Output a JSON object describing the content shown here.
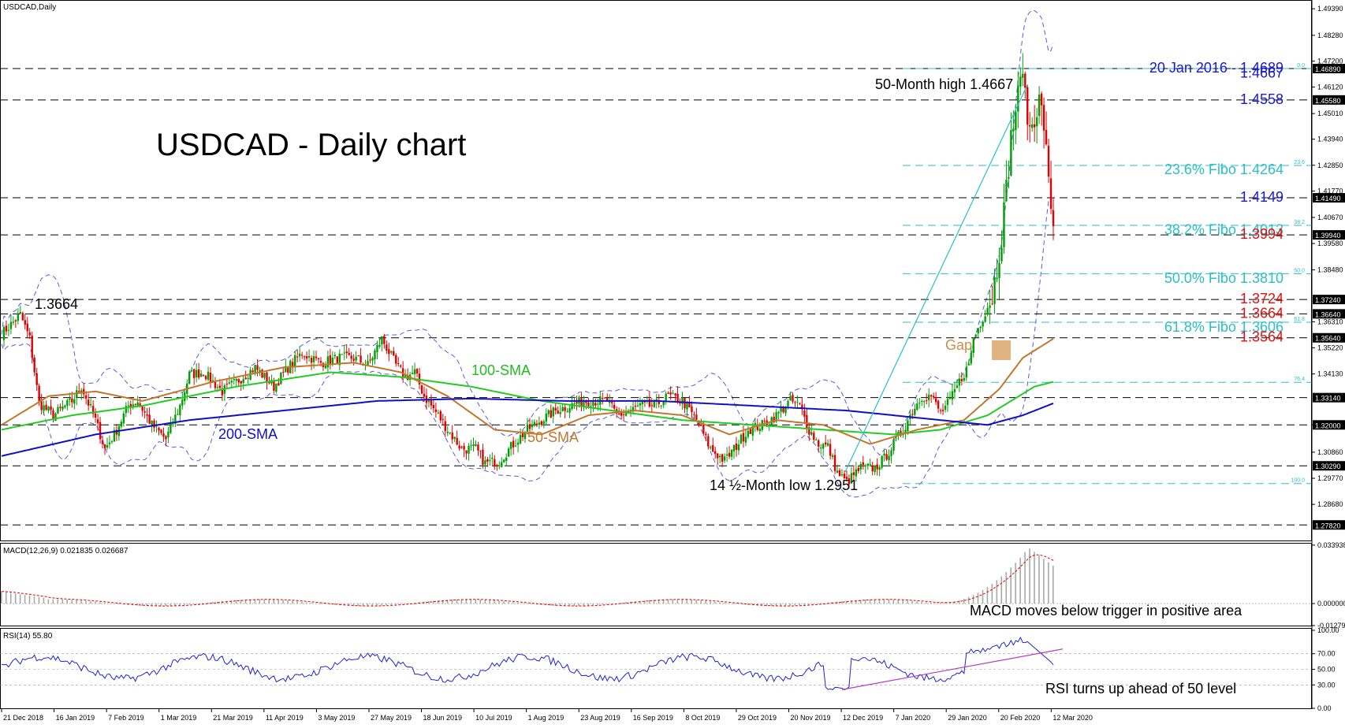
{
  "colors": {
    "candle_up": "#00a000",
    "candle_down": "#e00000",
    "sma50": "#c07830",
    "sma100": "#22cc22",
    "sma200": "#1010c0",
    "bollinger": "#5a5ae0",
    "fibo": "#2bbfc8",
    "trendline": "#2bbfc8",
    "macd_hist": "#a8a8a8",
    "macd_signal": "#e00000",
    "rsi": "#2222cc",
    "rsi_trend": "#b040c0",
    "level_blue": "#1a1acc",
    "level_red": "#e01010",
    "gap_box": "#d9a76a"
  },
  "panels": {
    "main": {
      "header": "USDCAD,Daily"
    },
    "macd": {
      "header": "MACD(12,26,9) 0.021835 0.026687"
    },
    "rsi": {
      "header": "RSI(14) 55.80"
    }
  },
  "annotations": {
    "title": "USDCAD - Daily chart",
    "high_label": "50-Month high 1.4667",
    "low_label": "14 ½-Month low 1.2951",
    "left_level": "1.3664",
    "gap": "Gap",
    "sma100": "100-SMA",
    "sma50": "50-SMA",
    "sma200": "200-SMA",
    "macd_note": "MACD moves below trigger in positive area",
    "rsi_note": "RSI turns up ahead of 50 level"
  },
  "level_labels": [
    {
      "text": "20 Jan 2016 - 1.4689",
      "price": 1.4689,
      "color": "blue"
    },
    {
      "text": "1.4667",
      "price": 1.4667,
      "color": "blue"
    },
    {
      "text": "1.4558",
      "price": 1.4558,
      "color": "blue"
    },
    {
      "text": "23.6% Fibo 1.4264",
      "price": 1.4264,
      "color": "cyan"
    },
    {
      "text": "1.4149",
      "price": 1.4149,
      "color": "blue"
    },
    {
      "text": "38.2% Fibo 1.4013",
      "price": 1.4013,
      "color": "cyan"
    },
    {
      "text": "1.3994",
      "price": 1.3994,
      "color": "red"
    },
    {
      "text": "50.0% Fibo 1.3810",
      "price": 1.381,
      "color": "cyan"
    },
    {
      "text": "1.3724",
      "price": 1.3724,
      "color": "red"
    },
    {
      "text": "1.3664",
      "price": 1.3664,
      "color": "red"
    },
    {
      "text": "61.8% Fibo 1.3606",
      "price": 1.3606,
      "color": "cyan"
    },
    {
      "text": "1.3564",
      "price": 1.3564,
      "color": "red"
    }
  ],
  "fib_tags": [
    {
      "text": "0.0",
      "price": 1.4689
    },
    {
      "text": "23.6",
      "price": 1.4284
    },
    {
      "text": "38.2",
      "price": 1.4034
    },
    {
      "text": "50.0",
      "price": 1.3832
    },
    {
      "text": "61.8",
      "price": 1.3629
    },
    {
      "text": "76.4",
      "price": 1.3378
    },
    {
      "text": "100.0",
      "price": 1.2955
    }
  ],
  "chart_data": [
    {
      "type": "candlestick",
      "title": "USDCAD,Daily",
      "ylim": [
        1.2717,
        1.4969
      ],
      "x_labels": [
        "21 Dec 2018",
        "16 Jan 2019",
        "7 Feb 2019",
        "1 Mar 2019",
        "21 Mar 2019",
        "11 Apr 2019",
        "3 May 2019",
        "27 May 2019",
        "18 Jun 2019",
        "10 Jul 2019",
        "1 Aug 2019",
        "23 Aug 2019",
        "16 Sep 2019",
        "8 Oct 2019",
        "29 Oct 2019",
        "20 Nov 2019",
        "12 Dec 2019",
        "7 Jan 2020",
        "29 Jan 2020",
        "20 Feb 2020",
        "12 Mar 2020"
      ],
      "y_ticks": [
        1.4939,
        1.4828,
        1.472,
        1.4612,
        1.4501,
        1.4394,
        1.4285,
        1.4177,
        1.4067,
        1.3958,
        1.3848,
        1.3631,
        1.3522,
        1.3413,
        1.32,
        1.3086,
        1.2977,
        1.2868
      ],
      "price_tags": [
        1.4689,
        1.4558,
        1.4149,
        1.3994,
        1.3724,
        1.3664,
        1.3564,
        1.3314,
        1.32,
        1.3029,
        1.2782
      ],
      "price_tag_texts": [
        "1.46890",
        "1.45580",
        "1.41490",
        "1.39940",
        "1.37240",
        "1.36640",
        "1.35640",
        "1.33140",
        "1.32000",
        "1.30290",
        "1.27820"
      ],
      "y_tick_texts": [
        "1.49390",
        "1.48280",
        "1.47200",
        "1.46120",
        "1.45010",
        "1.43940",
        "1.42850",
        "1.41770",
        "1.40670",
        "1.39580",
        "1.38480",
        "1.36310",
        "1.35220",
        "1.34130",
        "1.32000",
        "1.30860",
        "1.29770",
        "1.28680"
      ],
      "close_path": [
        [
          0,
          1.358
        ],
        [
          8,
          1.366
        ],
        [
          12,
          1.356
        ],
        [
          16,
          1.329
        ],
        [
          22,
          1.324
        ],
        [
          30,
          1.33
        ],
        [
          34,
          1.336
        ],
        [
          40,
          1.322
        ],
        [
          44,
          1.31
        ],
        [
          48,
          1.316
        ],
        [
          54,
          1.328
        ],
        [
          58,
          1.33
        ],
        [
          64,
          1.32
        ],
        [
          70,
          1.314
        ],
        [
          76,
          1.328
        ],
        [
          80,
          1.341
        ],
        [
          86,
          1.342
        ],
        [
          94,
          1.334
        ],
        [
          100,
          1.338
        ],
        [
          108,
          1.344
        ],
        [
          116,
          1.336
        ],
        [
          122,
          1.344
        ],
        [
          128,
          1.35
        ],
        [
          136,
          1.346
        ],
        [
          144,
          1.348
        ],
        [
          150,
          1.348
        ],
        [
          156,
          1.345
        ],
        [
          162,
          1.356
        ],
        [
          168,
          1.345
        ],
        [
          172,
          1.34
        ],
        [
          176,
          1.342
        ],
        [
          180,
          1.332
        ],
        [
          186,
          1.324
        ],
        [
          190,
          1.318
        ],
        [
          196,
          1.31
        ],
        [
          202,
          1.31
        ],
        [
          206,
          1.304
        ],
        [
          212,
          1.305
        ],
        [
          218,
          1.312
        ],
        [
          224,
          1.318
        ],
        [
          230,
          1.322
        ],
        [
          236,
          1.326
        ],
        [
          242,
          1.328
        ],
        [
          248,
          1.33
        ],
        [
          252,
          1.33
        ],
        [
          258,
          1.33
        ],
        [
          262,
          1.324
        ],
        [
          266,
          1.325
        ],
        [
          272,
          1.328
        ],
        [
          278,
          1.328
        ],
        [
          284,
          1.332
        ],
        [
          290,
          1.33
        ],
        [
          296,
          1.322
        ],
        [
          302,
          1.31
        ],
        [
          308,
          1.305
        ],
        [
          312,
          1.31
        ],
        [
          318,
          1.318
        ],
        [
          324,
          1.32
        ],
        [
          330,
          1.324
        ],
        [
          336,
          1.33
        ],
        [
          340,
          1.328
        ],
        [
          344,
          1.318
        ],
        [
          348,
          1.312
        ],
        [
          352,
          1.311
        ],
        [
          356,
          1.3
        ],
        [
          360,
          1.296
        ],
        [
          362,
          1.298
        ],
        [
          366,
          1.302
        ],
        [
          372,
          1.302
        ],
        [
          376,
          1.306
        ],
        [
          380,
          1.312
        ],
        [
          384,
          1.318
        ],
        [
          388,
          1.326
        ],
        [
          392,
          1.332
        ],
        [
          396,
          1.332
        ],
        [
          400,
          1.325
        ],
        [
          404,
          1.33
        ],
        [
          408,
          1.338
        ],
        [
          412,
          1.345
        ],
        [
          414,
          1.356
        ],
        [
          418,
          1.365
        ],
        [
          422,
          1.374
        ],
        [
          424,
          1.386
        ],
        [
          426,
          1.4
        ],
        [
          428,
          1.418
        ],
        [
          430,
          1.44
        ],
        [
          432,
          1.452
        ],
        [
          434,
          1.462
        ],
        [
          435,
          1.4667
        ],
        [
          436,
          1.455
        ],
        [
          438,
          1.443
        ],
        [
          440,
          1.45
        ],
        [
          442,
          1.455
        ],
        [
          444,
          1.446
        ],
        [
          446,
          1.42
        ],
        [
          448,
          1.405
        ]
      ],
      "series": [
        {
          "name": "100-SMA",
          "values": [
            [
              0,
              1.318
            ],
            [
              30,
              1.324
            ],
            [
              60,
              1.328
            ],
            [
              100,
              1.336
            ],
            [
              140,
              1.342
            ],
            [
              170,
              1.34
            ],
            [
              200,
              1.336
            ],
            [
              230,
              1.33
            ],
            [
              260,
              1.326
            ],
            [
              290,
              1.322
            ],
            [
              320,
              1.32
            ],
            [
              350,
              1.318
            ],
            [
              380,
              1.316
            ],
            [
              400,
              1.318
            ],
            [
              420,
              1.324
            ],
            [
              440,
              1.336
            ],
            [
              448,
              1.338
            ]
          ]
        },
        {
          "name": "50-SMA",
          "values": [
            [
              0,
              1.32
            ],
            [
              20,
              1.332
            ],
            [
              40,
              1.334
            ],
            [
              60,
              1.33
            ],
            [
              90,
              1.338
            ],
            [
              120,
              1.344
            ],
            [
              150,
              1.346
            ],
            [
              170,
              1.342
            ],
            [
              190,
              1.332
            ],
            [
              210,
              1.318
            ],
            [
              230,
              1.316
            ],
            [
              250,
              1.324
            ],
            [
              270,
              1.326
            ],
            [
              290,
              1.324
            ],
            [
              310,
              1.316
            ],
            [
              330,
              1.322
            ],
            [
              350,
              1.32
            ],
            [
              370,
              1.312
            ],
            [
              390,
              1.318
            ],
            [
              410,
              1.322
            ],
            [
              425,
              1.335
            ],
            [
              435,
              1.348
            ],
            [
              448,
              1.356
            ]
          ]
        },
        {
          "name": "200-SMA",
          "values": [
            [
              0,
              1.307
            ],
            [
              40,
              1.316
            ],
            [
              80,
              1.322
            ],
            [
              120,
              1.326
            ],
            [
              160,
              1.33
            ],
            [
              200,
              1.331
            ],
            [
              240,
              1.33
            ],
            [
              280,
              1.33
            ],
            [
              320,
              1.328
            ],
            [
              360,
              1.326
            ],
            [
              400,
              1.322
            ],
            [
              420,
              1.32
            ],
            [
              435,
              1.324
            ],
            [
              448,
              1.329
            ]
          ]
        }
      ]
    },
    {
      "type": "bar",
      "title": "MACD(12,26,9) 0.021835 0.026687",
      "ylim": [
        -0.0128,
        0.0339
      ],
      "y_ticks": [
        0.033938,
        0.0,
        -0.012792
      ],
      "y_tick_texts": [
        "0.033938",
        "0.000000",
        "-0.012792"
      ]
    },
    {
      "type": "line",
      "title": "RSI(14) 55.80",
      "ylim": [
        0,
        100
      ],
      "y_ticks": [
        100,
        70,
        50,
        30,
        0
      ],
      "y_tick_texts": [
        "100.00",
        "70.00",
        "50.00",
        "30.00",
        "0.00"
      ]
    }
  ]
}
